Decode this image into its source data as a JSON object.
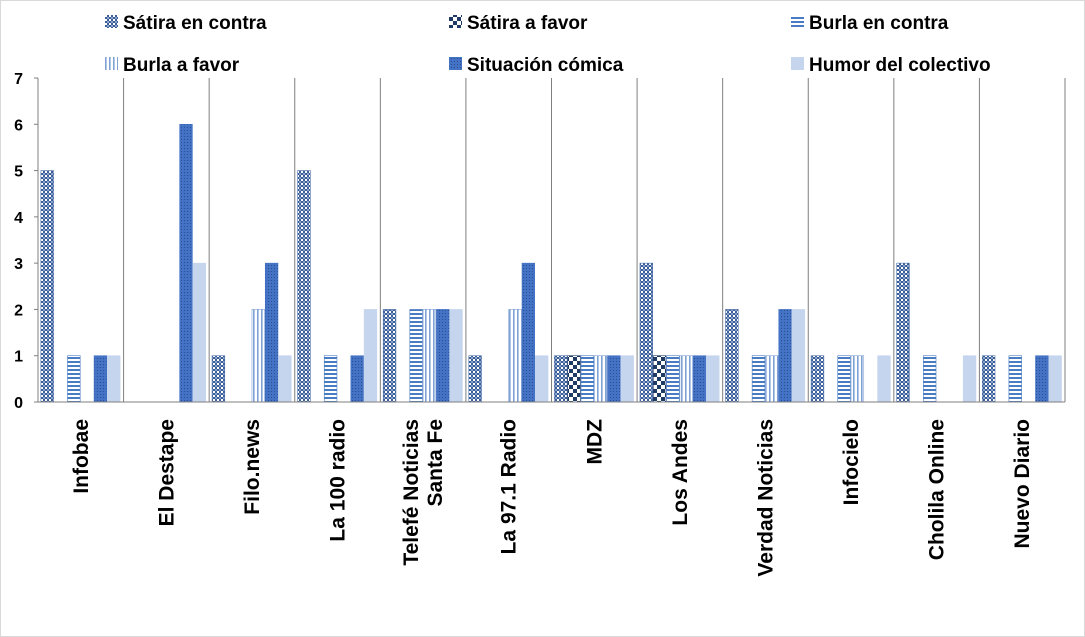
{
  "chart_data": {
    "type": "bar",
    "title": "",
    "xlabel": "",
    "ylabel": "",
    "ylim": [
      0,
      7
    ],
    "yticks": [
      "0",
      "1",
      "2",
      "3",
      "4",
      "5",
      "6",
      "7"
    ],
    "legend_position": "top",
    "categories": [
      "Infobae",
      "El Destape",
      "Filo.news",
      "La 100 radio",
      "Telefé Noticias Santa Fe",
      "La 97.1 Radio",
      "MDZ",
      "Los Andes",
      "Verdad Noticias",
      "Infocielo",
      "Cholila Online",
      "Nuevo Diario"
    ],
    "series": [
      {
        "name": "Sátira en contra",
        "pattern": "crosshatch-fine",
        "color": "#4a6ea8",
        "values": [
          5,
          0,
          1,
          5,
          2,
          1,
          1,
          3,
          2,
          1,
          3,
          1
        ]
      },
      {
        "name": "Sátira a favor",
        "pattern": "checker",
        "color": "#1f3a64",
        "values": [
          0,
          0,
          0,
          0,
          0,
          0,
          1,
          1,
          0,
          0,
          0,
          0
        ]
      },
      {
        "name": "Burla en contra",
        "pattern": "horizontal",
        "color": "#4a7cc4",
        "values": [
          1,
          0,
          0,
          1,
          2,
          0,
          1,
          1,
          1,
          1,
          1,
          1
        ]
      },
      {
        "name": "Burla a favor",
        "pattern": "vertical",
        "color": "#7fa1d4",
        "values": [
          0,
          0,
          2,
          0,
          2,
          2,
          1,
          1,
          1,
          1,
          0,
          0
        ]
      },
      {
        "name": "Situación cómica",
        "pattern": "dotted",
        "color": "#4472c4",
        "values": [
          1,
          6,
          3,
          1,
          2,
          3,
          1,
          1,
          2,
          0,
          0,
          1
        ]
      },
      {
        "name": "Humor del colectivo",
        "pattern": "solid",
        "color": "#c5d5ee",
        "values": [
          1,
          3,
          1,
          2,
          2,
          1,
          1,
          1,
          2,
          1,
          1,
          1
        ]
      }
    ]
  }
}
